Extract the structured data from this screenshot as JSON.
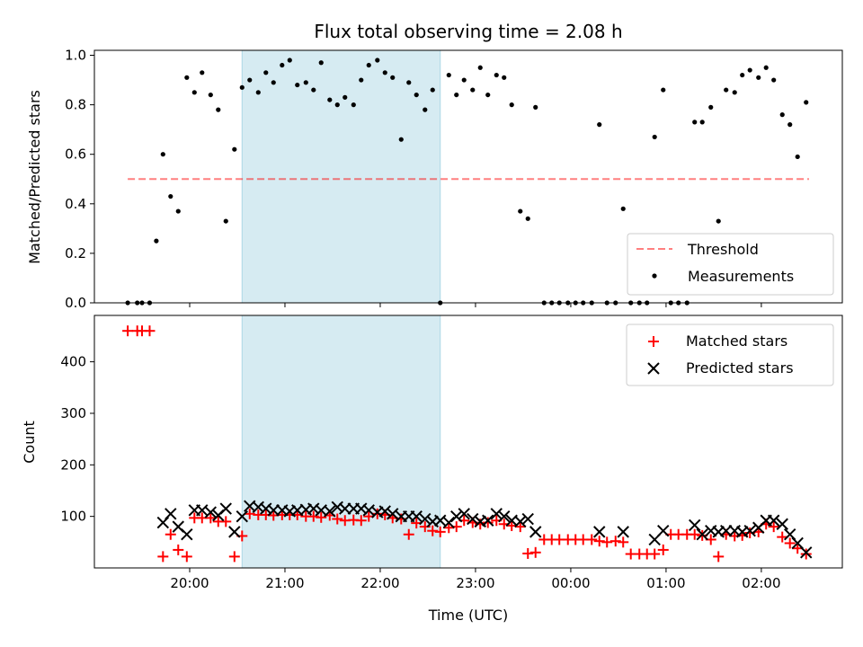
{
  "title": "Flux total observing time = 2.08 h",
  "colors": {
    "shade": "#add8e6",
    "threshold": "#ff0000",
    "matched": "#ff0000",
    "predicted": "#000000",
    "measurement": "#000000"
  },
  "chart_data": [
    {
      "type": "scatter",
      "title": "Flux total observing time = 2.08 h",
      "ylabel": "Matched/Predicted stars",
      "xlabel": "",
      "xlim": [
        19.0,
        26.85
      ],
      "ylim": [
        0.0,
        1.02
      ],
      "yticks": [
        0.0,
        0.2,
        0.4,
        0.6,
        0.8,
        1.0
      ],
      "ytick_labels": [
        "0.0",
        "0.2",
        "0.4",
        "0.6",
        "0.8",
        "1.0"
      ],
      "shaded_interval": [
        20.55,
        22.63
      ],
      "threshold": 0.5,
      "threshold_x": [
        19.35,
        26.5
      ],
      "legend": {
        "placement": "lower-right",
        "entries": [
          "Threshold",
          "Measurements"
        ]
      },
      "series": [
        {
          "name": "Measurements",
          "x": [
            19.35,
            19.45,
            19.5,
            19.58,
            19.65,
            19.72,
            19.8,
            19.88,
            19.97,
            20.05,
            20.13,
            20.22,
            20.3,
            20.38,
            20.47,
            20.55,
            20.63,
            20.72,
            20.8,
            20.88,
            20.97,
            21.05,
            21.13,
            21.22,
            21.3,
            21.38,
            21.47,
            21.55,
            21.63,
            21.72,
            21.8,
            21.88,
            21.97,
            22.05,
            22.13,
            22.22,
            22.3,
            22.38,
            22.47,
            22.55,
            22.63,
            22.72,
            22.8,
            22.88,
            22.97,
            23.05,
            23.13,
            23.22,
            23.3,
            23.38,
            23.47,
            23.55,
            23.63,
            23.72,
            23.8,
            23.88,
            23.97,
            24.05,
            24.13,
            24.22,
            24.3,
            24.38,
            24.47,
            24.55,
            24.63,
            24.72,
            24.8,
            24.88,
            24.97,
            25.05,
            25.13,
            25.22,
            25.3,
            25.38,
            25.47,
            25.55,
            25.63,
            25.72,
            25.8,
            25.88,
            25.97,
            26.05,
            26.13,
            26.22,
            26.3,
            26.38,
            26.47
          ],
          "y": [
            0.0,
            0.0,
            0.0,
            0.0,
            0.25,
            0.6,
            0.43,
            0.37,
            0.91,
            0.85,
            0.93,
            0.84,
            0.78,
            0.33,
            0.62,
            0.87,
            0.9,
            0.85,
            0.93,
            0.89,
            0.96,
            0.98,
            0.88,
            0.89,
            0.86,
            0.97,
            0.82,
            0.8,
            0.83,
            0.8,
            0.9,
            0.96,
            0.98,
            0.93,
            0.91,
            0.66,
            0.89,
            0.84,
            0.78,
            0.86,
            0.0,
            0.92,
            0.84,
            0.9,
            0.86,
            0.95,
            0.84,
            0.92,
            0.91,
            0.8,
            0.37,
            0.34,
            0.79,
            0.0,
            0.0,
            0.0,
            0.0,
            0.0,
            0.0,
            0.0,
            0.72,
            0.0,
            0.0,
            0.38,
            0.0,
            0.0,
            0.0,
            0.67,
            0.86,
            0.0,
            0.0,
            0.0,
            0.73,
            0.73,
            0.79,
            0.33,
            0.86,
            0.85,
            0.92,
            0.94,
            0.91,
            0.95,
            0.9,
            0.76,
            0.72,
            0.59,
            0.81
          ]
        }
      ]
    },
    {
      "type": "scatter",
      "title": "",
      "ylabel": "Count",
      "xlabel": "Time (UTC)",
      "xlim": [
        19.0,
        26.85
      ],
      "ylim": [
        0,
        490
      ],
      "yticks": [
        100,
        200,
        300,
        400
      ],
      "ytick_labels": [
        "100",
        "200",
        "300",
        "400"
      ],
      "xticks": [
        20,
        21,
        22,
        23,
        24,
        25,
        26
      ],
      "xtick_labels": [
        "20:00",
        "21:00",
        "22:00",
        "23:00",
        "00:00",
        "01:00",
        "02:00"
      ],
      "shaded_interval": [
        20.55,
        22.63
      ],
      "legend": {
        "placement": "upper-right",
        "entries": [
          "Matched stars",
          "Predicted stars"
        ]
      },
      "series": [
        {
          "name": "Matched stars",
          "x": [
            19.35,
            19.45,
            19.5,
            19.58,
            19.72,
            19.8,
            19.88,
            19.97,
            20.05,
            20.13,
            20.22,
            20.3,
            20.38,
            20.47,
            20.55,
            20.63,
            20.72,
            20.8,
            20.88,
            20.97,
            21.05,
            21.13,
            21.22,
            21.3,
            21.38,
            21.47,
            21.55,
            21.63,
            21.72,
            21.8,
            21.88,
            21.97,
            22.05,
            22.13,
            22.22,
            22.3,
            22.38,
            22.47,
            22.55,
            22.63,
            22.72,
            22.8,
            22.88,
            22.97,
            23.05,
            23.13,
            23.22,
            23.3,
            23.38,
            23.47,
            23.55,
            23.63,
            23.72,
            23.8,
            23.88,
            23.97,
            24.05,
            24.13,
            24.22,
            24.3,
            24.38,
            24.47,
            24.55,
            24.63,
            24.72,
            24.8,
            24.88,
            24.97,
            25.05,
            25.13,
            25.22,
            25.3,
            25.38,
            25.47,
            25.55,
            25.63,
            25.72,
            25.8,
            25.88,
            25.97,
            26.05,
            26.13,
            26.22,
            26.3,
            26.38,
            26.47
          ],
          "y": [
            460,
            460,
            460,
            460,
            22,
            65,
            35,
            22,
            97,
            97,
            97,
            90,
            90,
            22,
            62,
            105,
            103,
            103,
            102,
            103,
            103,
            103,
            100,
            100,
            98,
            102,
            95,
            92,
            93,
            92,
            100,
            105,
            103,
            97,
            95,
            65,
            87,
            80,
            72,
            70,
            78,
            80,
            92,
            88,
            85,
            88,
            92,
            85,
            82,
            80,
            28,
            30,
            55,
            55,
            55,
            55,
            55,
            55,
            55,
            52,
            50,
            52,
            50,
            27,
            27,
            27,
            27,
            35,
            65,
            65,
            65,
            65,
            63,
            55,
            22,
            65,
            62,
            63,
            68,
            70,
            85,
            80,
            60,
            48,
            38,
            27
          ]
        },
        {
          "name": "Predicted stars",
          "x": [
            19.72,
            19.8,
            19.88,
            19.97,
            20.05,
            20.13,
            20.22,
            20.3,
            20.38,
            20.47,
            20.55,
            20.63,
            20.72,
            20.8,
            20.88,
            20.97,
            21.05,
            21.13,
            21.22,
            21.3,
            21.38,
            21.47,
            21.55,
            21.63,
            21.72,
            21.8,
            21.88,
            21.97,
            22.05,
            22.13,
            22.22,
            22.3,
            22.38,
            22.47,
            22.55,
            22.63,
            22.72,
            22.8,
            22.88,
            22.97,
            23.05,
            23.13,
            23.22,
            23.3,
            23.38,
            23.47,
            23.55,
            23.63,
            24.3,
            24.55,
            24.88,
            24.97,
            25.3,
            25.38,
            25.47,
            25.55,
            25.63,
            25.72,
            25.8,
            25.88,
            25.97,
            26.05,
            26.13,
            26.22,
            26.3,
            26.38,
            26.47
          ],
          "y": [
            88,
            105,
            80,
            65,
            112,
            112,
            108,
            102,
            115,
            70,
            100,
            120,
            118,
            115,
            112,
            112,
            110,
            112,
            113,
            115,
            112,
            110,
            118,
            115,
            115,
            115,
            112,
            108,
            110,
            105,
            100,
            100,
            100,
            95,
            90,
            92,
            88,
            100,
            105,
            95,
            90,
            92,
            105,
            100,
            92,
            90,
            95,
            70,
            70,
            70,
            55,
            72,
            83,
            65,
            72,
            70,
            72,
            72,
            70,
            72,
            78,
            92,
            92,
            85,
            65,
            48,
            30
          ]
        }
      ]
    }
  ]
}
